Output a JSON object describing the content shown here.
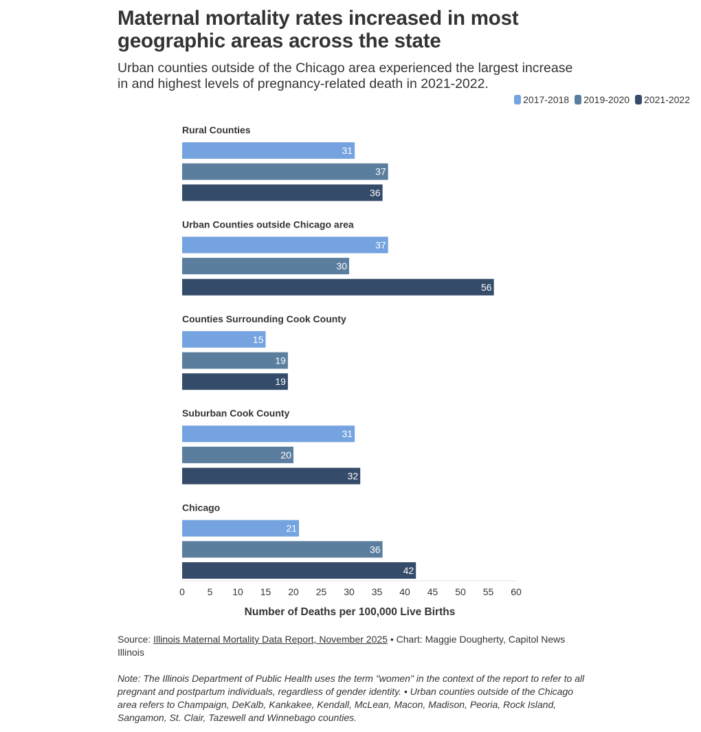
{
  "title": "Maternal mortality rates increased in most geographic areas across the state",
  "subtitle": "Urban counties outside of the Chicago area experienced the largest increase in and highest levels of pregnancy-related death in 2021-2022.",
  "colors": {
    "s1": "#74a3e0",
    "s2": "#5b7e9e",
    "s3": "#344b69",
    "text": "#333333"
  },
  "chart_data": {
    "type": "bar",
    "orientation": "horizontal",
    "title": "Maternal mortality rates increased in most geographic areas across the state",
    "xlabel": "Number of Deaths per 100,000 Live Births",
    "ylabel": "",
    "xlim": [
      0,
      60
    ],
    "xticks": [
      0,
      5,
      10,
      15,
      20,
      25,
      30,
      35,
      40,
      45,
      50,
      55,
      60
    ],
    "legend_position": "top-right",
    "categories": [
      "Rural Counties",
      "Urban Counties outside Chicago area",
      "Counties Surrounding Cook County",
      "Suburban Cook County",
      "Chicago"
    ],
    "series": [
      {
        "name": "2017-2018",
        "values": [
          31,
          37,
          15,
          31,
          21
        ]
      },
      {
        "name": "2019-2020",
        "values": [
          37,
          30,
          19,
          20,
          36
        ]
      },
      {
        "name": "2021-2022",
        "values": [
          36,
          56,
          19,
          32,
          42
        ]
      }
    ]
  },
  "source": {
    "prefix": "Source: ",
    "link_text": "Illinois Maternal Mortality Data Report, November 2025",
    "suffix": " • Chart: Maggie Dougherty, Capitol News Illinois"
  },
  "note": "Note: The Illinois Department of Public Health uses the term \"women\" in the context of the report to refer to all pregnant and postpartum individuals, regardless of gender identity. • Urban counties outside of the Chicago area refers to Champaign, DeKalb, Kankakee, Kendall, McLean, Macon, Madison, Peoria, Rock Island, Sangamon, St. Clair, Tazewell and Winnebago counties."
}
